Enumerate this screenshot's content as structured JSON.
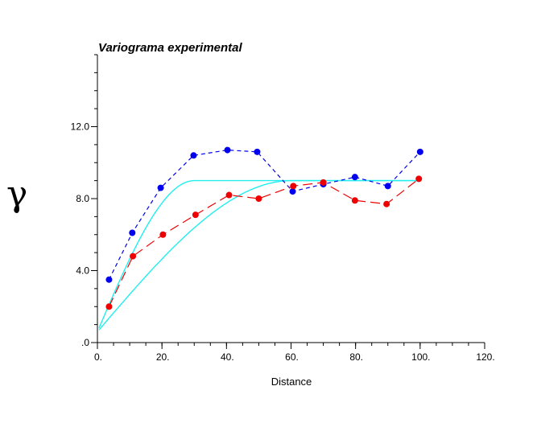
{
  "chart_data": {
    "type": "line",
    "title": "Variograma experimental",
    "xlabel": "Distance",
    "ylabel": "γ",
    "xlim": [
      0,
      120
    ],
    "ylim": [
      0,
      16
    ],
    "x_ticks": [
      0,
      20,
      40,
      60,
      80,
      100,
      120
    ],
    "x_tick_labels": [
      "0.",
      "20.",
      "40.",
      "60.",
      "80.",
      "100.",
      "120."
    ],
    "y_ticks": [
      0,
      4,
      8,
      12
    ],
    "y_tick_labels": [
      ".0",
      "4.0",
      "8.0",
      "12.0"
    ],
    "y_minor_step": 1,
    "x_minor_step": 5,
    "grid": false,
    "series": [
      {
        "style": "experimental",
        "color": "#0000ee",
        "dash": "short",
        "x": [
          3.6,
          10.8,
          19.6,
          29.8,
          40.3,
          49.5,
          60.5,
          70.0,
          79.8,
          90.0,
          100.0
        ],
        "y": [
          3.5,
          6.1,
          8.6,
          10.4,
          10.7,
          10.6,
          8.4,
          8.8,
          9.2,
          8.7,
          10.6
        ]
      },
      {
        "style": "experimental",
        "color": "#ee0000",
        "dash": "long",
        "x": [
          3.6,
          11.0,
          20.3,
          30.4,
          40.8,
          50.0,
          60.7,
          70.0,
          79.8,
          89.6,
          99.6
        ],
        "y": [
          2.0,
          4.8,
          6.0,
          7.1,
          8.2,
          8.0,
          8.7,
          8.9,
          7.9,
          7.7,
          9.1
        ]
      },
      {
        "style": "model",
        "color": "#22eeee",
        "model": "spherical",
        "nugget": 0.6,
        "sill": 9.0,
        "range": 30,
        "x_max": 100
      },
      {
        "style": "model",
        "color": "#22eeee",
        "model": "spherical",
        "nugget": 0.6,
        "sill": 9.0,
        "range": 60,
        "x_max": 100
      }
    ]
  }
}
